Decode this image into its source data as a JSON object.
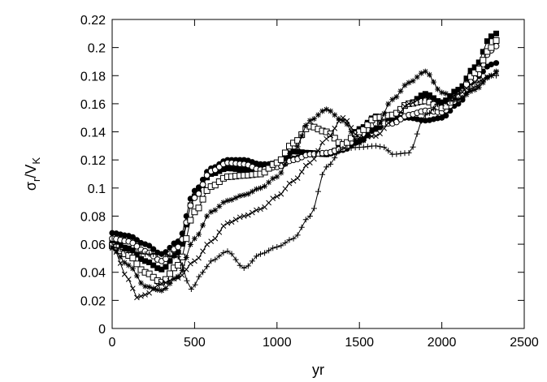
{
  "chart_data": {
    "type": "scatter",
    "title": "",
    "xlabel": "yr",
    "ylabel": "σr/VK",
    "ylabel_parts": {
      "symbol": "σ",
      "sub1": "r",
      "sep": "/V",
      "sub2": "K"
    },
    "xlim": [
      0,
      2500
    ],
    "ylim": [
      0,
      0.22
    ],
    "xticks": [
      "0",
      "500",
      "1000",
      "1500",
      "2000",
      "2500"
    ],
    "yticks": [
      "0",
      "0.02",
      "0.04",
      "0.06",
      "0.08",
      "0.1",
      "0.12",
      "0.14",
      "0.16",
      "0.18",
      "0.2",
      "0.22"
    ],
    "grid": false,
    "legend": "none",
    "series": [
      {
        "marker": "filled-circle",
        "x": [
          0,
          100,
          200,
          300,
          400,
          500,
          600,
          700,
          800,
          900,
          1000,
          1100,
          1200,
          1300,
          1400,
          1500,
          1600,
          1700,
          1800,
          1900,
          2000,
          2100,
          2200,
          2300,
          2330
        ],
        "y": [
          0.068,
          0.066,
          0.06,
          0.053,
          0.062,
          0.098,
          0.114,
          0.12,
          0.12,
          0.117,
          0.117,
          0.121,
          0.125,
          0.124,
          0.127,
          0.133,
          0.142,
          0.15,
          0.15,
          0.148,
          0.15,
          0.16,
          0.178,
          0.188,
          0.189
        ]
      },
      {
        "marker": "filled-square",
        "x": [
          0,
          100,
          200,
          300,
          400,
          500,
          600,
          700,
          800,
          900,
          1000,
          1100,
          1200,
          1300,
          1400,
          1500,
          1600,
          1700,
          1800,
          1900,
          2000,
          2100,
          2200,
          2300,
          2330
        ],
        "y": [
          0.061,
          0.057,
          0.048,
          0.042,
          0.054,
          0.094,
          0.11,
          0.114,
          0.113,
          0.114,
          0.118,
          0.126,
          0.125,
          0.124,
          0.129,
          0.142,
          0.151,
          0.15,
          0.16,
          0.167,
          0.161,
          0.17,
          0.186,
          0.208,
          0.21
        ]
      },
      {
        "marker": "open-circle",
        "x": [
          0,
          100,
          200,
          300,
          400,
          500,
          600,
          700,
          800,
          900,
          1000,
          1100,
          1200,
          1300,
          1400,
          1500,
          1600,
          1700,
          1800,
          1900,
          2000,
          2100,
          2200,
          2300,
          2330
        ],
        "y": [
          0.064,
          0.062,
          0.055,
          0.048,
          0.058,
          0.093,
          0.112,
          0.118,
          0.117,
          0.113,
          0.115,
          0.12,
          0.124,
          0.125,
          0.128,
          0.137,
          0.146,
          0.146,
          0.152,
          0.155,
          0.154,
          0.163,
          0.178,
          0.198,
          0.201
        ]
      },
      {
        "marker": "open-square",
        "x": [
          0,
          100,
          200,
          300,
          400,
          500,
          600,
          700,
          800,
          900,
          1000,
          1100,
          1200,
          1300,
          1400,
          1500,
          1600,
          1700,
          1800,
          1900,
          2000,
          2100,
          2200,
          2300,
          2330
        ],
        "y": [
          0.059,
          0.052,
          0.04,
          0.033,
          0.045,
          0.083,
          0.101,
          0.108,
          0.109,
          0.11,
          0.118,
          0.132,
          0.144,
          0.14,
          0.131,
          0.14,
          0.15,
          0.152,
          0.16,
          0.162,
          0.157,
          0.165,
          0.182,
          0.2,
          0.205
        ]
      },
      {
        "marker": "asterisk",
        "x": [
          0,
          100,
          200,
          300,
          400,
          500,
          600,
          700,
          800,
          900,
          1000,
          1100,
          1200,
          1300,
          1400,
          1500,
          1600,
          1700,
          1800,
          1900,
          2000,
          2100,
          2200,
          2300,
          2330
        ],
        "y": [
          0.057,
          0.045,
          0.03,
          0.027,
          0.037,
          0.064,
          0.083,
          0.091,
          0.095,
          0.1,
          0.108,
          0.126,
          0.148,
          0.156,
          0.148,
          0.132,
          0.143,
          0.163,
          0.175,
          0.183,
          0.168,
          0.163,
          0.17,
          0.18,
          0.183
        ]
      },
      {
        "marker": "x-cross",
        "x": [
          0,
          100,
          150,
          200,
          300,
          400,
          500,
          600,
          700,
          800,
          900,
          1000,
          1100,
          1200,
          1300,
          1400,
          1500,
          1600,
          1700,
          1800,
          1900,
          2000,
          2100,
          2200,
          2300,
          2330
        ],
        "y": [
          0.058,
          0.035,
          0.022,
          0.024,
          0.032,
          0.036,
          0.048,
          0.062,
          0.075,
          0.08,
          0.085,
          0.094,
          0.105,
          0.118,
          0.135,
          0.15,
          0.136,
          0.137,
          0.148,
          0.16,
          0.165,
          0.16,
          0.167,
          0.175,
          0.18,
          0.182
        ]
      },
      {
        "marker": "plus",
        "x": [
          0,
          100,
          200,
          300,
          400,
          480,
          550,
          600,
          700,
          800,
          900,
          1000,
          1100,
          1200,
          1300,
          1400,
          1500,
          1600,
          1650,
          1700,
          1800,
          1900,
          2000,
          2100,
          2200,
          2300,
          2330
        ],
        "y": [
          0.058,
          0.055,
          0.053,
          0.053,
          0.051,
          0.028,
          0.04,
          0.048,
          0.055,
          0.043,
          0.053,
          0.058,
          0.064,
          0.08,
          0.115,
          0.128,
          0.129,
          0.13,
          0.129,
          0.124,
          0.125,
          0.152,
          0.161,
          0.163,
          0.172,
          0.18,
          0.18
        ]
      }
    ]
  }
}
